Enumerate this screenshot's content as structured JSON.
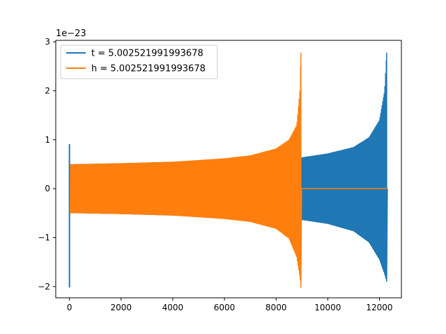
{
  "chart_data": {
    "type": "line",
    "title": "",
    "xlabel": "",
    "ylabel": "",
    "y_offset_label": "1e−23",
    "xlim": [
      -530,
      12850
    ],
    "ylim": [
      -2.23,
      3.03
    ],
    "y_scale_note": "values in units of 1e-23",
    "x_ticks": [
      {
        "value": 0,
        "label": "0"
      },
      {
        "value": 2000,
        "label": "2000"
      },
      {
        "value": 4000,
        "label": "4000"
      },
      {
        "value": 6000,
        "label": "6000"
      },
      {
        "value": 8000,
        "label": "8000"
      },
      {
        "value": 10000,
        "label": "10000"
      },
      {
        "value": 12000,
        "label": "12000"
      }
    ],
    "y_ticks": [
      {
        "value": -2,
        "label": "−2"
      },
      {
        "value": -1,
        "label": "−1"
      },
      {
        "value": 0,
        "label": "0"
      },
      {
        "value": 1,
        "label": "1"
      },
      {
        "value": 2,
        "label": "2"
      },
      {
        "value": 3,
        "label": "3"
      }
    ],
    "grid": false,
    "legend_position": "upper-left",
    "series": [
      {
        "name": "t = 5.002521991993678",
        "color": "#1f77b4",
        "kind": "oscillation-envelope",
        "x_start": 0,
        "x_end": 12300,
        "initial_transient": {
          "x": 0,
          "max": 0.91,
          "min": -2.02
        },
        "envelope": [
          {
            "x": 30,
            "upper": 0.5,
            "lower": -0.5
          },
          {
            "x": 2000,
            "upper": 0.52,
            "lower": -0.52
          },
          {
            "x": 4000,
            "upper": 0.55,
            "lower": -0.55
          },
          {
            "x": 6000,
            "upper": 0.58,
            "lower": -0.58
          },
          {
            "x": 8000,
            "upper": 0.6,
            "lower": -0.6
          },
          {
            "x": 9000,
            "upper": 0.64,
            "lower": -0.64
          },
          {
            "x": 10000,
            "upper": 0.72,
            "lower": -0.72
          },
          {
            "x": 11000,
            "upper": 0.85,
            "lower": -0.87
          },
          {
            "x": 11600,
            "upper": 1.05,
            "lower": -1.1
          },
          {
            "x": 12000,
            "upper": 1.4,
            "lower": -1.45
          },
          {
            "x": 12200,
            "upper": 2.0,
            "lower": -1.75
          },
          {
            "x": 12280,
            "upper": 2.78,
            "lower": -1.9
          }
        ],
        "tail_value": 0
      },
      {
        "name": "h = 5.002521991993678",
        "color": "#ff7f0e",
        "kind": "oscillation-envelope",
        "x_start": 0,
        "x_end": 12300,
        "envelope": [
          {
            "x": 30,
            "upper": 0.5,
            "lower": -0.5
          },
          {
            "x": 2000,
            "upper": 0.52,
            "lower": -0.52
          },
          {
            "x": 4000,
            "upper": 0.55,
            "lower": -0.55
          },
          {
            "x": 6000,
            "upper": 0.62,
            "lower": -0.62
          },
          {
            "x": 7000,
            "upper": 0.68,
            "lower": -0.68
          },
          {
            "x": 8000,
            "upper": 0.82,
            "lower": -0.82
          },
          {
            "x": 8500,
            "upper": 1.0,
            "lower": -1.02
          },
          {
            "x": 8800,
            "upper": 1.3,
            "lower": -1.4
          },
          {
            "x": 8920,
            "upper": 2.0,
            "lower": -1.8
          },
          {
            "x": 8960,
            "upper": 2.78,
            "lower": -2.02
          }
        ],
        "merger_x": 8975,
        "tail_value": 0
      }
    ]
  }
}
